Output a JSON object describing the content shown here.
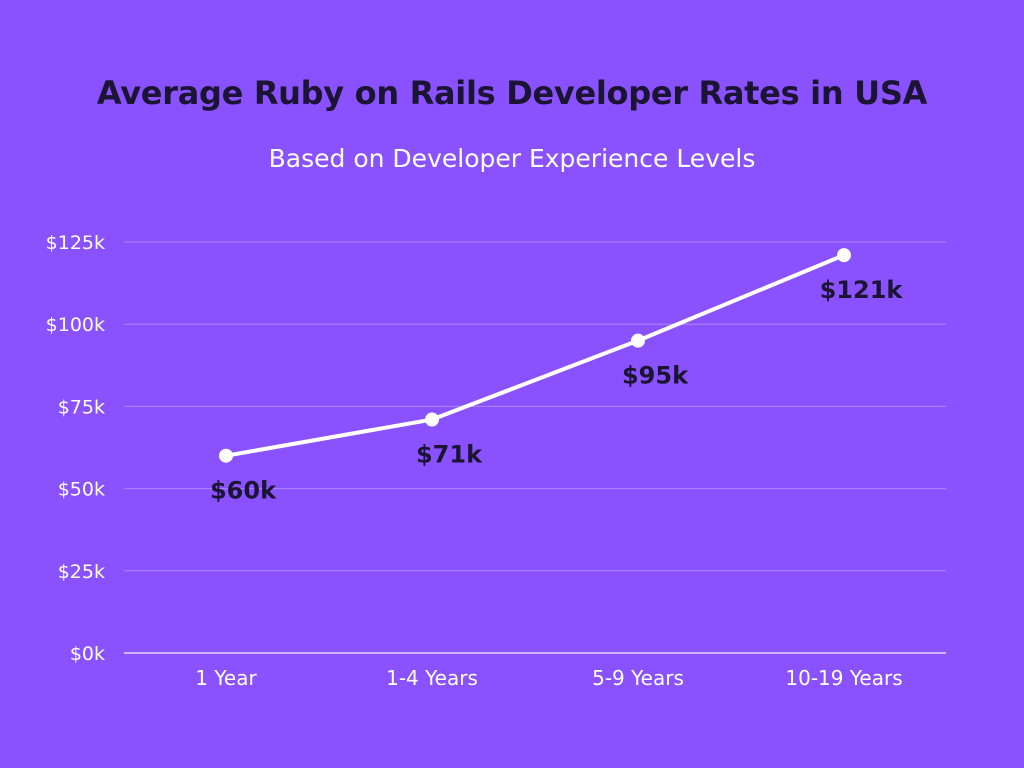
{
  "chart_data": {
    "type": "line",
    "title": "Average Ruby on Rails Developer Rates in USA",
    "subtitle": "Based on Developer Experience Levels",
    "xlabel": "",
    "ylabel": "",
    "categories": [
      "1 Year",
      "1-4 Years",
      "5-9 Years",
      "10-19 Years"
    ],
    "series": [
      {
        "values": [
          60,
          71,
          95,
          121
        ],
        "data_labels": [
          "$60k",
          "$71k",
          "$95k",
          "$121k"
        ]
      }
    ],
    "ylim": [
      0,
      125
    ],
    "y_ticks": [
      0,
      25,
      50,
      75,
      100,
      125
    ],
    "y_tick_labels": [
      "$0k",
      "$25k",
      "$50k",
      "$75k",
      "$100k",
      "$125k"
    ],
    "grid": true,
    "legend": "none",
    "colors": {
      "background": "#8a52ff",
      "line": "#ffffff",
      "marker": "#ffffff",
      "grid": "#ad87ff",
      "axis": "#e2d4ff",
      "title": "#1b1533",
      "subtitle": "#ffffff",
      "tick_label": "#ffffff",
      "data_label": "#1b1533"
    }
  }
}
